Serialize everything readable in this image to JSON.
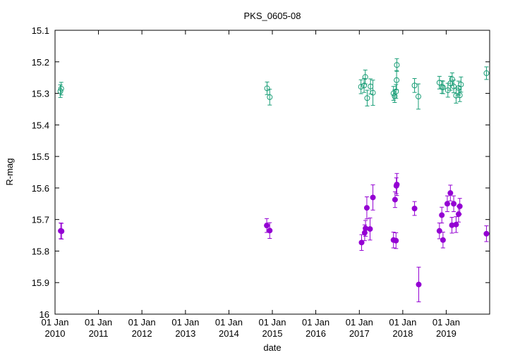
{
  "chart_data": {
    "type": "scatter",
    "title": "PKS_0605-08",
    "xlabel": "date",
    "ylabel": "R-mag",
    "x_axis": "date",
    "xlim": [
      "2010-01-01",
      "2020-01-01"
    ],
    "ylim": [
      15.1,
      16.0
    ],
    "y_inverted": true,
    "y_ticks": [
      "15.1",
      "15.2",
      "15.3",
      "15.4",
      "15.5",
      "15.6",
      "15.7",
      "15.8",
      "15.9",
      "16"
    ],
    "x_ticks": [
      {
        "date": "2010-01-01",
        "line1": "01 Jan",
        "line2": "2010"
      },
      {
        "date": "2011-01-01",
        "line1": "01 Jan",
        "line2": "2011"
      },
      {
        "date": "2012-01-01",
        "line1": "01 Jan",
        "line2": "2012"
      },
      {
        "date": "2013-01-01",
        "line1": "01 Jan",
        "line2": "2013"
      },
      {
        "date": "2014-01-01",
        "line1": "01 Jan",
        "line2": "2014"
      },
      {
        "date": "2015-01-01",
        "line1": "01 Jan",
        "line2": "2015"
      },
      {
        "date": "2016-01-01",
        "line1": "01 Jan",
        "line2": "2016"
      },
      {
        "date": "2017-01-01",
        "line1": "01 Jan",
        "line2": "2017"
      },
      {
        "date": "2018-01-01",
        "line1": "01 Jan",
        "line2": "2018"
      },
      {
        "date": "2019-01-01",
        "line1": "01 Jan",
        "line2": "2019"
      }
    ],
    "grid": false,
    "series": [
      {
        "color": "#1a9e77",
        "marker": "open-circle",
        "points": [
          {
            "x": "2010-02-15",
            "y": 15.293,
            "err": 0.02
          },
          {
            "x": "2010-02-22",
            "y": 15.285,
            "err": 0.02
          },
          {
            "x": "2014-11-18",
            "y": 15.284,
            "err": 0.02
          },
          {
            "x": "2014-12-10",
            "y": 15.312,
            "err": 0.025
          },
          {
            "x": "2017-01-15",
            "y": 15.279,
            "err": 0.022
          },
          {
            "x": "2017-02-10",
            "y": 15.275,
            "err": 0.022
          },
          {
            "x": "2017-02-20",
            "y": 15.248,
            "err": 0.022
          },
          {
            "x": "2017-03-08",
            "y": 15.315,
            "err": 0.025
          },
          {
            "x": "2017-04-05",
            "y": 15.278,
            "err": 0.024
          },
          {
            "x": "2017-04-25",
            "y": 15.298,
            "err": 0.04
          },
          {
            "x": "2017-10-15",
            "y": 15.3,
            "err": 0.022
          },
          {
            "x": "2017-10-25",
            "y": 15.309,
            "err": 0.02
          },
          {
            "x": "2017-11-05",
            "y": 15.294,
            "err": 0.022
          },
          {
            "x": "2017-11-10",
            "y": 15.258,
            "err": 0.03
          },
          {
            "x": "2017-11-12",
            "y": 15.21,
            "err": 0.02
          },
          {
            "x": "2018-04-10",
            "y": 15.275,
            "err": 0.022
          },
          {
            "x": "2018-05-12",
            "y": 15.31,
            "err": 0.04
          },
          {
            "x": "2018-11-05",
            "y": 15.266,
            "err": 0.02
          },
          {
            "x": "2018-11-25",
            "y": 15.28,
            "err": 0.02
          },
          {
            "x": "2018-12-05",
            "y": 15.281,
            "err": 0.02
          },
          {
            "x": "2019-01-15",
            "y": 15.29,
            "err": 0.022
          },
          {
            "x": "2019-02-05",
            "y": 15.268,
            "err": 0.022
          },
          {
            "x": "2019-02-20",
            "y": 15.255,
            "err": 0.02
          },
          {
            "x": "2019-03-05",
            "y": 15.278,
            "err": 0.02
          },
          {
            "x": "2019-03-25",
            "y": 15.307,
            "err": 0.024
          },
          {
            "x": "2019-04-15",
            "y": 15.283,
            "err": 0.022
          },
          {
            "x": "2019-04-25",
            "y": 15.306,
            "err": 0.02
          },
          {
            "x": "2019-05-05",
            "y": 15.272,
            "err": 0.024
          },
          {
            "x": "2019-12-05",
            "y": 15.236,
            "err": 0.02
          }
        ]
      },
      {
        "color": "#9400d3",
        "marker": "filled-circle",
        "points": [
          {
            "x": "2010-02-18",
            "y": 15.736,
            "err": 0.025
          },
          {
            "x": "2010-02-25",
            "y": 15.737,
            "err": 0.025
          },
          {
            "x": "2014-11-15",
            "y": 15.719,
            "err": 0.022
          },
          {
            "x": "2014-12-10",
            "y": 15.735,
            "err": 0.025
          },
          {
            "x": "2017-01-20",
            "y": 15.773,
            "err": 0.025
          },
          {
            "x": "2017-02-15",
            "y": 15.742,
            "err": 0.025
          },
          {
            "x": "2017-02-22",
            "y": 15.728,
            "err": 0.025
          },
          {
            "x": "2017-03-05",
            "y": 15.663,
            "err": 0.035
          },
          {
            "x": "2017-04-01",
            "y": 15.73,
            "err": 0.035
          },
          {
            "x": "2017-04-25",
            "y": 15.63,
            "err": 0.04
          },
          {
            "x": "2017-10-15",
            "y": 15.765,
            "err": 0.025
          },
          {
            "x": "2017-10-28",
            "y": 15.637,
            "err": 0.025
          },
          {
            "x": "2017-11-05",
            "y": 15.767,
            "err": 0.025
          },
          {
            "x": "2017-11-08",
            "y": 15.593,
            "err": 0.025
          },
          {
            "x": "2017-11-12",
            "y": 15.589,
            "err": 0.035
          },
          {
            "x": "2018-04-10",
            "y": 15.665,
            "err": 0.022
          },
          {
            "x": "2018-05-15",
            "y": 15.906,
            "err": 0.055
          },
          {
            "x": "2018-11-05",
            "y": 15.736,
            "err": 0.025
          },
          {
            "x": "2018-11-25",
            "y": 15.686,
            "err": 0.025
          },
          {
            "x": "2018-12-05",
            "y": 15.765,
            "err": 0.025
          },
          {
            "x": "2019-01-10",
            "y": 15.65,
            "err": 0.025
          },
          {
            "x": "2019-02-05",
            "y": 15.616,
            "err": 0.025
          },
          {
            "x": "2019-02-18",
            "y": 15.718,
            "err": 0.025
          },
          {
            "x": "2019-03-05",
            "y": 15.65,
            "err": 0.025
          },
          {
            "x": "2019-03-25",
            "y": 15.716,
            "err": 0.025
          },
          {
            "x": "2019-04-15",
            "y": 15.683,
            "err": 0.025
          },
          {
            "x": "2019-04-25",
            "y": 15.658,
            "err": 0.025
          },
          {
            "x": "2019-12-05",
            "y": 15.745,
            "err": 0.025
          }
        ]
      }
    ]
  }
}
